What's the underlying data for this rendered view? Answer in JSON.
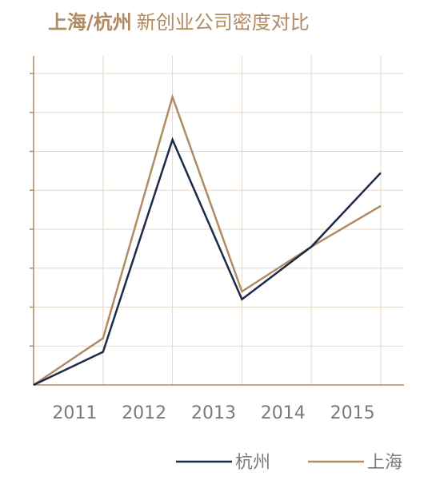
{
  "header": {
    "title_bold": "上海/杭州",
    "title_rest": "新创业公司密度对比"
  },
  "chart_data": {
    "type": "line",
    "title": "上海/杭州 新创业公司密度对比",
    "xlabel": "",
    "ylabel": "",
    "categories": [
      "",
      "2011",
      "2012",
      "2013",
      "2014",
      "2015"
    ],
    "series": [
      {
        "name": "杭州",
        "color": "#1b2a48",
        "values": [
          0,
          0.85,
          6.3,
          2.2,
          3.55,
          5.45
        ]
      },
      {
        "name": "上海",
        "color": "#b08a63",
        "values": [
          0,
          1.2,
          7.4,
          2.4,
          3.55,
          4.6
        ]
      }
    ],
    "ylim": [
      0,
      8
    ],
    "y_ticks_labeled": false,
    "grid": true,
    "legend": "bottom-right",
    "colors": {
      "axis": "#b08a63",
      "grid": "#e3d7ca",
      "tick_text": "#7a7a7a"
    }
  }
}
